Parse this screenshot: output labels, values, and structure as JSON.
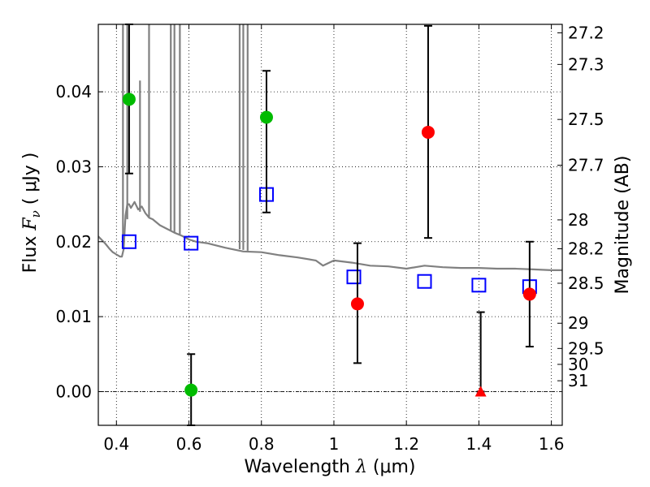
{
  "chart_data": {
    "type": "scatter",
    "xlabel_text": "Wavelength  ",
    "xlabel_symbol": "λ",
    "xlabel_unit": " (μm)",
    "ylabel_text": "Flux  ",
    "ylabel_symbol": "F",
    "ylabel_sub": "ν",
    "ylabel_unit": "  ( μJy )",
    "y2label": "Magnitude (AB)",
    "xlim": [
      0.35,
      1.63
    ],
    "ylim": [
      -0.0045,
      0.049
    ],
    "grid": true,
    "x_ticks": [
      0.4,
      0.6,
      0.8,
      1.0,
      1.2,
      1.4,
      1.6
    ],
    "x_tick_labels": [
      "0.4",
      "0.6",
      "0.8",
      "1",
      "1.2",
      "1.4",
      "1.6"
    ],
    "y_ticks": [
      0.0,
      0.01,
      0.02,
      0.03,
      0.04
    ],
    "y_tick_labels": [
      "0.00",
      "0.01",
      "0.02",
      "0.03",
      "0.04"
    ],
    "mag_ticks": [
      {
        "mag": 27.2,
        "label": "27.2"
      },
      {
        "mag": 27.3,
        "label": "27.3"
      },
      {
        "mag": 27.5,
        "label": "27.5"
      },
      {
        "mag": 27.7,
        "label": "27.7"
      },
      {
        "mag": 28.0,
        "label": "28"
      },
      {
        "mag": 28.2,
        "label": "28.2"
      },
      {
        "mag": 28.5,
        "label": "28.5"
      },
      {
        "mag": 29.0,
        "label": "29"
      },
      {
        "mag": 29.5,
        "label": "29.5"
      },
      {
        "mag": 30.0,
        "label": "30"
      },
      {
        "mag": 31.0,
        "label": "31"
      }
    ],
    "series": [
      {
        "name": "model photometry",
        "marker": "open-square",
        "color": "#0000ff",
        "points": [
          {
            "x": 0.435,
            "y": 0.02
          },
          {
            "x": 0.606,
            "y": 0.0198
          },
          {
            "x": 0.814,
            "y": 0.0263
          },
          {
            "x": 1.055,
            "y": 0.0153
          },
          {
            "x": 1.25,
            "y": 0.0147
          },
          {
            "x": 1.4,
            "y": 0.0142
          },
          {
            "x": 1.54,
            "y": 0.014
          }
        ]
      },
      {
        "name": "observed (green)",
        "marker": "filled-circle",
        "color": "#00bb00",
        "points": [
          {
            "x": 0.435,
            "y": 0.039,
            "yerr_low": 0.0291,
            "yerr_high": 0.049
          },
          {
            "x": 0.606,
            "y": 0.0002,
            "yerr_low": -0.0045,
            "yerr_high": 0.005
          },
          {
            "x": 0.814,
            "y": 0.0366,
            "yerr_low": 0.0239,
            "yerr_high": 0.0428
          }
        ]
      },
      {
        "name": "observed (red)",
        "marker": "filled-circle",
        "color": "#ff0000",
        "points": [
          {
            "x": 1.065,
            "y": 0.0117,
            "yerr_low": 0.0038,
            "yerr_high": 0.0198
          },
          {
            "x": 1.26,
            "y": 0.0346,
            "yerr_low": 0.0205,
            "yerr_high": 0.0488
          },
          {
            "x": 1.54,
            "y": 0.013,
            "yerr_low": 0.006,
            "yerr_high": 0.02
          }
        ]
      },
      {
        "name": "upper limit",
        "marker": "filled-triangle",
        "color": "#ff0000",
        "points": [
          {
            "x": 1.405,
            "y": 0.0,
            "yerr_low": 0.0,
            "yerr_high": 0.0106
          }
        ]
      }
    ],
    "sed_model": {
      "name": "model SED",
      "color": "#808080",
      "x": [
        0.35,
        0.36,
        0.37,
        0.38,
        0.39,
        0.4,
        0.41,
        0.415,
        0.42,
        0.425,
        0.43,
        0.435,
        0.44,
        0.45,
        0.46,
        0.47,
        0.48,
        0.49,
        0.5,
        0.52,
        0.54,
        0.56,
        0.58,
        0.6,
        0.62,
        0.65,
        0.7,
        0.75,
        0.8,
        0.85,
        0.9,
        0.95,
        0.97,
        1.0,
        1.05,
        1.1,
        1.15,
        1.2,
        1.25,
        1.3,
        1.35,
        1.4,
        1.45,
        1.5,
        1.55,
        1.6,
        1.63
      ],
      "y": [
        0.0207,
        0.0202,
        0.0197,
        0.0191,
        0.0186,
        0.0183,
        0.018,
        0.018,
        0.019,
        0.0235,
        0.025,
        0.025,
        0.0245,
        0.0253,
        0.0243,
        0.0247,
        0.0238,
        0.0232,
        0.023,
        0.0222,
        0.0217,
        0.0212,
        0.0208,
        0.0203,
        0.02,
        0.0198,
        0.0192,
        0.0187,
        0.0186,
        0.0182,
        0.0179,
        0.0175,
        0.0168,
        0.0175,
        0.0172,
        0.0168,
        0.0167,
        0.0164,
        0.0168,
        0.0166,
        0.0165,
        0.0165,
        0.0164,
        0.0164,
        0.0163,
        0.0162,
        0.0162
      ]
    },
    "sed_spikes": [
      {
        "x": 0.418,
        "y_low": 0.0195,
        "y_high": 0.049
      },
      {
        "x": 0.43,
        "y_low": 0.023,
        "y_high": 0.049
      },
      {
        "x": 0.465,
        "y_low": 0.024,
        "y_high": 0.0415
      },
      {
        "x": 0.49,
        "y_low": 0.0232,
        "y_high": 0.049
      },
      {
        "x": 0.55,
        "y_low": 0.0214,
        "y_high": 0.049
      },
      {
        "x": 0.56,
        "y_low": 0.0212,
        "y_high": 0.049
      },
      {
        "x": 0.575,
        "y_low": 0.021,
        "y_high": 0.049
      },
      {
        "x": 0.74,
        "y_low": 0.019,
        "y_high": 0.049
      },
      {
        "x": 0.75,
        "y_low": 0.0189,
        "y_high": 0.049
      },
      {
        "x": 0.762,
        "y_low": 0.0188,
        "y_high": 0.049
      }
    ]
  }
}
